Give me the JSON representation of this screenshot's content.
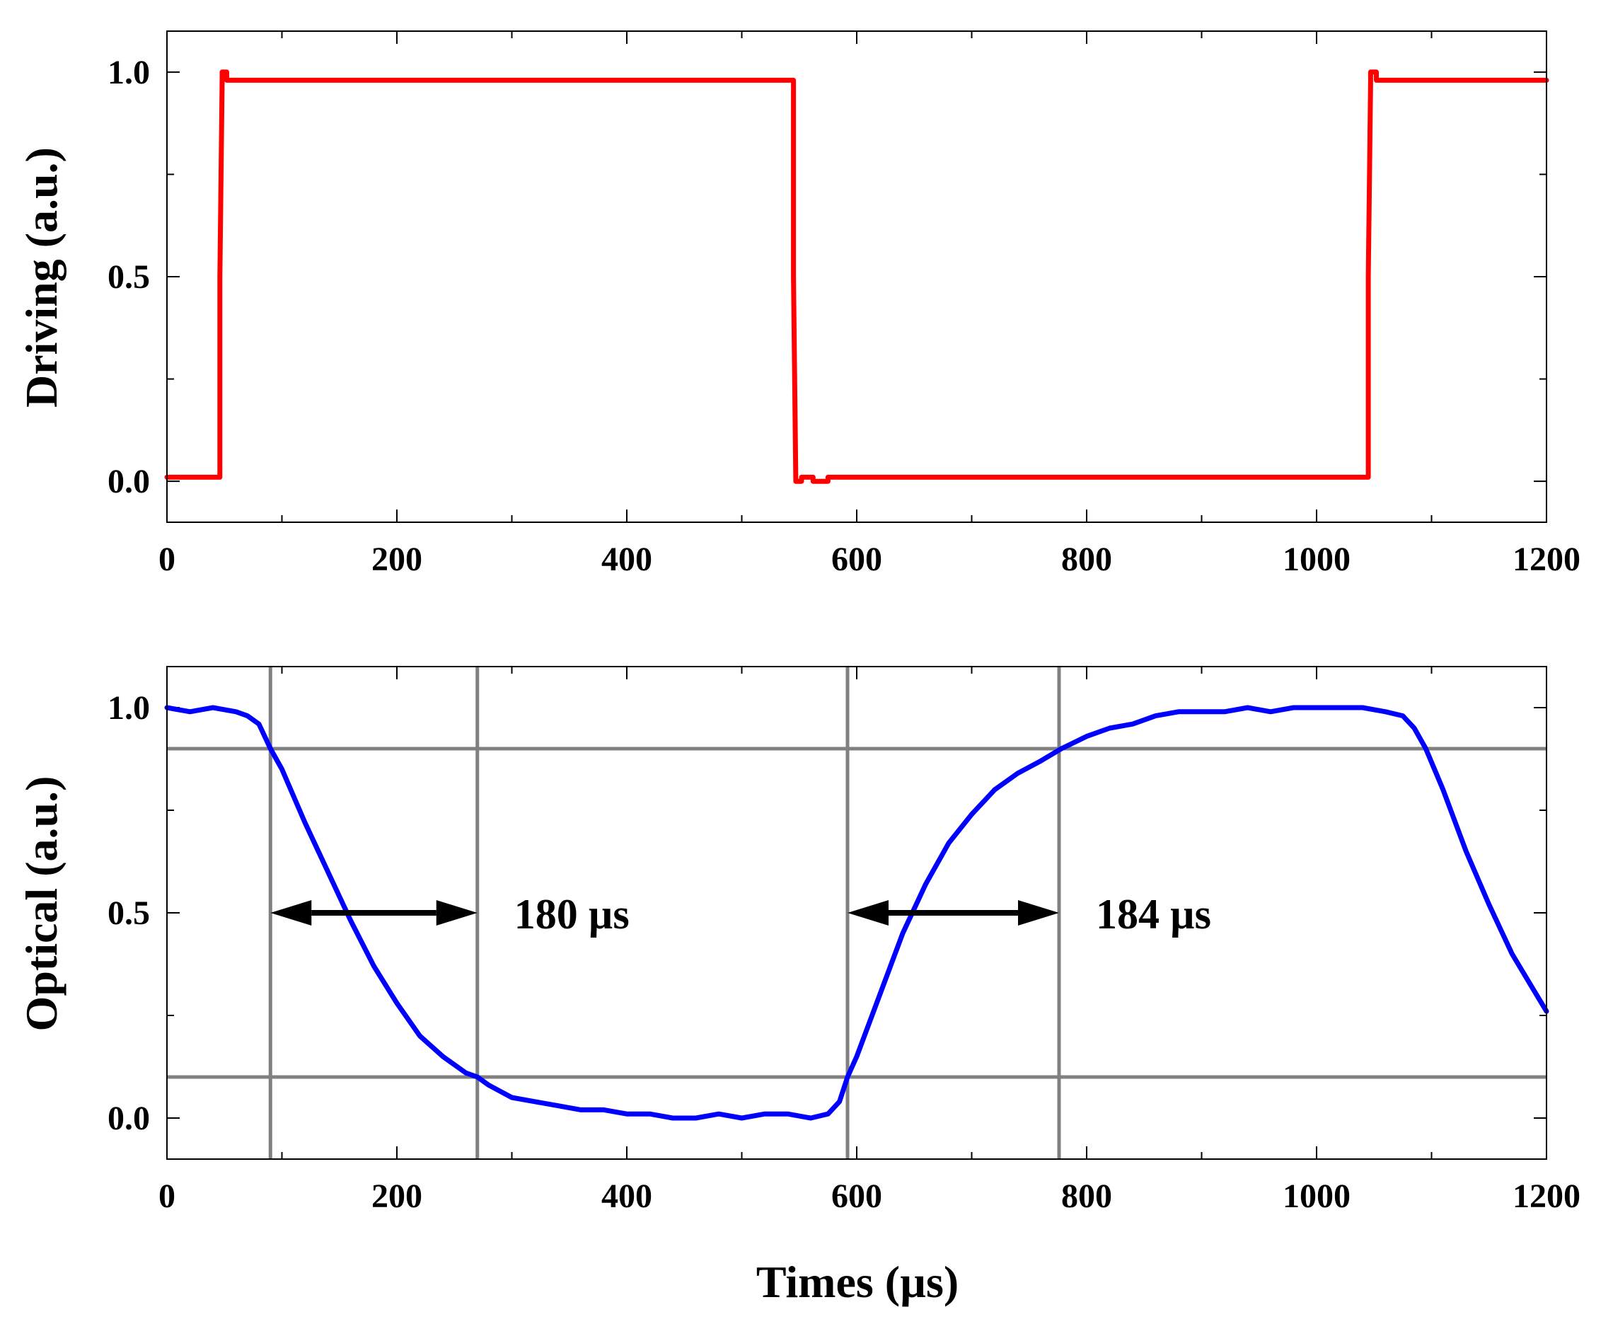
{
  "chart_data": [
    {
      "type": "line",
      "ylabel": "Driving (a.u.)",
      "xlabel": "",
      "xlim": [
        0,
        1200
      ],
      "ylim": [
        -0.1,
        1.1
      ],
      "x_ticks": [
        "0",
        "200",
        "400",
        "600",
        "800",
        "1000",
        "1200"
      ],
      "y_ticks": [
        "0.0",
        "0.5",
        "1.0"
      ],
      "series": [
        {
          "name": "Driving",
          "color": "#ff0000",
          "x": [
            0,
            46,
            46,
            48,
            48,
            52,
            52,
            545,
            545,
            547,
            547,
            552,
            552,
            562,
            562,
            575,
            575,
            1045,
            1045,
            1047,
            1047,
            1052,
            1052,
            1200
          ],
          "y": [
            0.01,
            0.01,
            0.5,
            0.98,
            1.0,
            1.0,
            0.98,
            0.98,
            0.5,
            0.0,
            0.0,
            0.0,
            0.01,
            0.01,
            0.0,
            0.0,
            0.01,
            0.01,
            0.5,
            0.98,
            1.0,
            1.0,
            0.98,
            0.98
          ]
        }
      ]
    },
    {
      "type": "line",
      "ylabel": "Optical (a.u.)",
      "xlabel": "Times (µs)",
      "xlim": [
        0,
        1200
      ],
      "ylim": [
        -0.1,
        1.1
      ],
      "x_ticks": [
        "0",
        "200",
        "400",
        "600",
        "800",
        "1000",
        "1200"
      ],
      "y_ticks": [
        "0.0",
        "0.5",
        "1.0"
      ],
      "series": [
        {
          "name": "Optical",
          "color": "#0000ff",
          "x": [
            0,
            20,
            40,
            60,
            70,
            80,
            90,
            100,
            120,
            140,
            160,
            180,
            200,
            220,
            240,
            260,
            270,
            280,
            300,
            320,
            340,
            360,
            380,
            400,
            420,
            440,
            460,
            480,
            500,
            520,
            540,
            560,
            575,
            585,
            592,
            600,
            620,
            640,
            660,
            680,
            700,
            720,
            740,
            760,
            778,
            800,
            820,
            840,
            860,
            880,
            900,
            920,
            940,
            960,
            980,
            1000,
            1020,
            1040,
            1060,
            1075,
            1085,
            1095,
            1110,
            1130,
            1150,
            1170,
            1185,
            1200
          ],
          "y": [
            1.0,
            0.99,
            1.0,
            0.99,
            0.98,
            0.96,
            0.9,
            0.85,
            0.72,
            0.6,
            0.48,
            0.37,
            0.28,
            0.2,
            0.15,
            0.11,
            0.1,
            0.08,
            0.05,
            0.04,
            0.03,
            0.02,
            0.02,
            0.01,
            0.01,
            0.0,
            0.0,
            0.01,
            0.0,
            0.01,
            0.01,
            0.0,
            0.01,
            0.04,
            0.1,
            0.15,
            0.3,
            0.45,
            0.57,
            0.67,
            0.74,
            0.8,
            0.84,
            0.87,
            0.9,
            0.93,
            0.95,
            0.96,
            0.98,
            0.99,
            0.99,
            0.99,
            1.0,
            0.99,
            1.0,
            1.0,
            1.0,
            1.0,
            0.99,
            0.98,
            0.95,
            0.9,
            0.8,
            0.65,
            0.52,
            0.4,
            0.33,
            0.26
          ]
        }
      ],
      "reference_lines": {
        "horizontal": [
          0.9,
          0.1
        ],
        "vertical": [
          90,
          270,
          592,
          776
        ],
        "color": "#808080"
      },
      "annotations": [
        {
          "text": "180 µs",
          "arrow_from": 90,
          "arrow_to": 270,
          "y": 0.5
        },
        {
          "text": "184 µs",
          "arrow_from": 592,
          "arrow_to": 776,
          "y": 0.5
        }
      ]
    }
  ]
}
